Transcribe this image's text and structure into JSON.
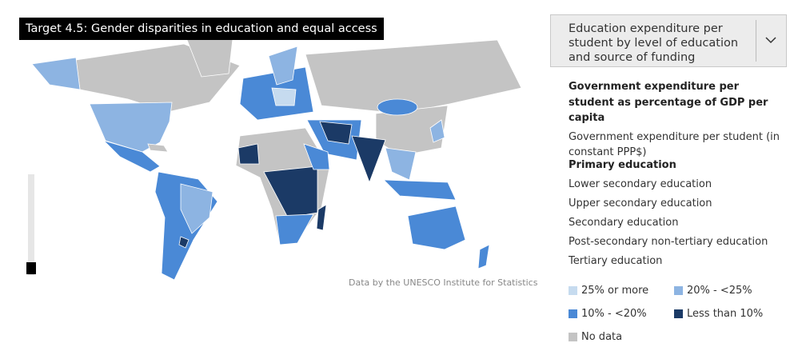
{
  "title": "Target 4.5: Gender disparities in education and equal access",
  "dropdown": {
    "label": "Education expenditure per student by level of education and source of funding"
  },
  "indicators": {
    "selected": 0,
    "items": [
      "Government expenditure per student as percentage of GDP per capita",
      "Government expenditure per student (in constant PPP$)"
    ]
  },
  "levels": {
    "selected": 0,
    "items": [
      "Primary education",
      "Lower secondary education",
      "Upper secondary education",
      "Secondary education",
      "Post-secondary non-tertiary education",
      "Tertiary education"
    ]
  },
  "source": "Data by the UNESCO Institute for Statistics",
  "legend": [
    {
      "label": "25% or more",
      "color": "#c6dbef"
    },
    {
      "label": "20% - <25%",
      "color": "#8db4e2"
    },
    {
      "label": "10% - <20%",
      "color": "#4a89d6"
    },
    {
      "label": "Less than 10%",
      "color": "#1b3a66"
    },
    {
      "label": "No data",
      "color": "#c4c4c4"
    }
  ]
}
